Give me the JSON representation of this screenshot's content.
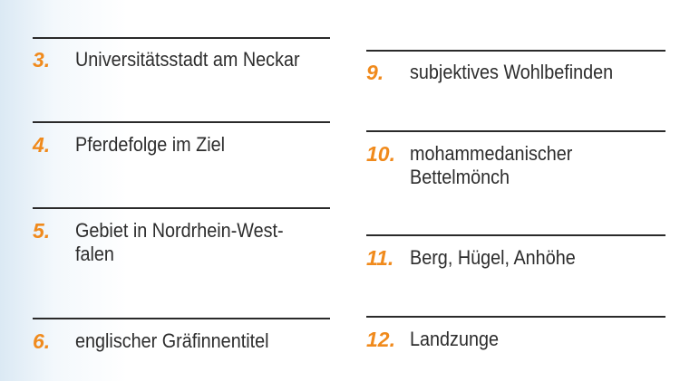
{
  "left": [
    {
      "num": "3.",
      "lines": [
        "Universitätsstadt am Neckar"
      ]
    },
    {
      "num": "4.",
      "lines": [
        "Pferdefolge im Ziel"
      ]
    },
    {
      "num": "5.",
      "lines": [
        "Gebiet in Nordrhein-West-",
        "falen"
      ]
    },
    {
      "num": "6.",
      "lines": [
        "englischer Gräfinnentitel"
      ]
    }
  ],
  "right": [
    {
      "num": "9.",
      "lines": [
        "subjektives Wohlbefinden"
      ]
    },
    {
      "num": "10.",
      "lines": [
        "mohammedanischer",
        "Bettelmönch"
      ]
    },
    {
      "num": "11.",
      "lines": [
        "Berg, Hügel, Anhöhe"
      ]
    },
    {
      "num": "12.",
      "lines": [
        "Landzunge"
      ]
    }
  ],
  "colors": {
    "number": "#f08a1c",
    "text": "#2d2d2d",
    "rule": "#2a2a2a"
  }
}
